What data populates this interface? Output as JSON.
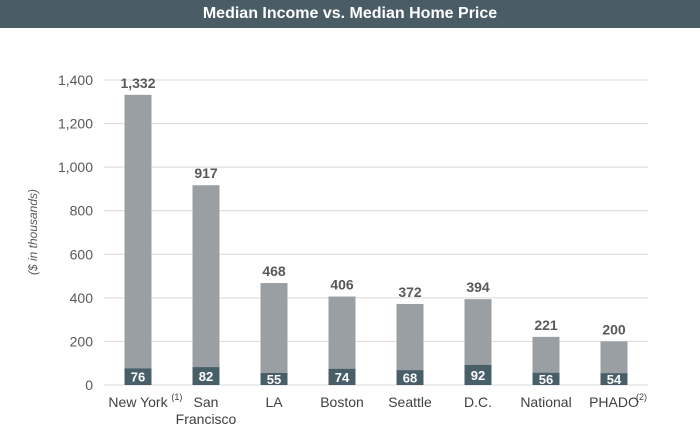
{
  "header": {
    "title": "Median Income vs. Median Home Price"
  },
  "colors": {
    "title_bg": "#4a5d66",
    "home_price": "#999fa2",
    "income": "#485e68",
    "grid": "#d9d9d9"
  },
  "chart_data": {
    "type": "bar",
    "stacked": true,
    "title": "Median Income vs. Median Home Price",
    "ylabel": "($ in thousands)",
    "xlabel": "",
    "ylim": [
      0,
      1400
    ],
    "yticks": [
      0,
      200,
      400,
      600,
      800,
      1000,
      1200,
      1400
    ],
    "ytick_labels": [
      "0",
      "200",
      "400",
      "600",
      "800",
      "1,000",
      "1,200",
      "1,400"
    ],
    "grid": true,
    "categories": [
      {
        "label": "New York",
        "note": "(1)"
      },
      {
        "label": "San\nFrancisco",
        "note": ""
      },
      {
        "label": "LA",
        "note": ""
      },
      {
        "label": "Boston",
        "note": ""
      },
      {
        "label": "Seattle",
        "note": ""
      },
      {
        "label": "D.C.",
        "note": ""
      },
      {
        "label": "National",
        "note": ""
      },
      {
        "label": "PHADO",
        "note": "(2)"
      }
    ],
    "series": [
      {
        "role": "income",
        "values": [
          76,
          82,
          55,
          74,
          68,
          92,
          56,
          54
        ],
        "labels": [
          "76",
          "82",
          "55",
          "74",
          "68",
          "92",
          "56",
          "54"
        ]
      },
      {
        "role": "home_price",
        "values": [
          1332,
          917,
          468,
          406,
          372,
          394,
          221,
          200
        ],
        "labels": [
          "1,332",
          "917",
          "468",
          "406",
          "372",
          "394",
          "221",
          "200"
        ]
      }
    ]
  }
}
